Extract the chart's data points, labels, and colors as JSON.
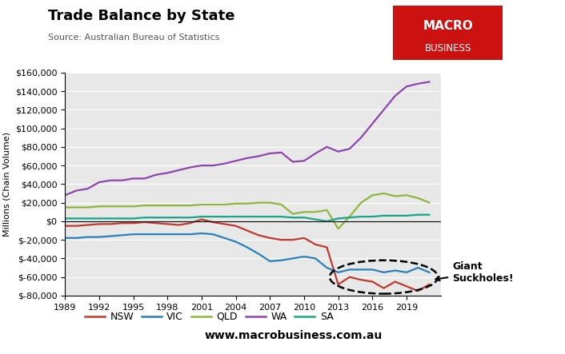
{
  "title": "Trade Balance by State",
  "source": "Source: Australian Bureau of Statistics",
  "ylabel": "Millions (Chain Volume)",
  "website": "www.macrobusiness.com.au",
  "background_color": "#e8e8e8",
  "ylim": [
    -80000,
    160000
  ],
  "yticks": [
    -80000,
    -60000,
    -40000,
    -20000,
    0,
    20000,
    40000,
    60000,
    80000,
    100000,
    120000,
    140000,
    160000
  ],
  "years": [
    1989,
    1990,
    1991,
    1992,
    1993,
    1994,
    1995,
    1996,
    1997,
    1998,
    1999,
    2000,
    2001,
    2002,
    2003,
    2004,
    2005,
    2006,
    2007,
    2008,
    2009,
    2010,
    2011,
    2012,
    2013,
    2014,
    2015,
    2016,
    2017,
    2018,
    2019,
    2020,
    2021
  ],
  "NSW": [
    -5000,
    -5000,
    -4000,
    -3000,
    -3000,
    -2000,
    -2000,
    -1000,
    -2000,
    -3000,
    -4000,
    -2000,
    2000,
    -1000,
    -3000,
    -5000,
    -10000,
    -15000,
    -18000,
    -20000,
    -20000,
    -18000,
    -25000,
    -28000,
    -68000,
    -60000,
    -63000,
    -65000,
    -72000,
    -65000,
    -70000,
    -75000,
    -68000
  ],
  "VIC": [
    -18000,
    -18000,
    -17000,
    -17000,
    -16000,
    -15000,
    -14000,
    -14000,
    -14000,
    -14000,
    -14000,
    -14000,
    -13000,
    -14000,
    -18000,
    -22000,
    -28000,
    -35000,
    -43000,
    -42000,
    -40000,
    -38000,
    -40000,
    -50000,
    -55000,
    -52000,
    -52000,
    -52000,
    -55000,
    -53000,
    -55000,
    -50000,
    -55000
  ],
  "QLD": [
    15000,
    15000,
    15000,
    16000,
    16000,
    16000,
    16000,
    17000,
    17000,
    17000,
    17000,
    17000,
    18000,
    18000,
    18000,
    19000,
    19000,
    20000,
    20000,
    18000,
    8000,
    10000,
    10000,
    12000,
    -8000,
    5000,
    20000,
    28000,
    30000,
    27000,
    28000,
    25000,
    20000
  ],
  "WA": [
    28000,
    33000,
    35000,
    42000,
    44000,
    44000,
    46000,
    46000,
    50000,
    52000,
    55000,
    58000,
    60000,
    60000,
    62000,
    65000,
    68000,
    70000,
    73000,
    74000,
    64000,
    65000,
    73000,
    80000,
    75000,
    78000,
    90000,
    105000,
    120000,
    135000,
    145000,
    148000,
    150000
  ],
  "SA": [
    3000,
    3000,
    3000,
    3000,
    3000,
    3000,
    3000,
    4000,
    4000,
    4000,
    4000,
    4000,
    5000,
    5000,
    5000,
    5000,
    5000,
    5000,
    5000,
    5000,
    4000,
    4000,
    2000,
    0,
    3000,
    4000,
    5000,
    5000,
    6000,
    6000,
    6000,
    7000,
    7000
  ],
  "colors": {
    "NSW": "#c0392b",
    "VIC": "#2980b9",
    "QLD": "#8db63c",
    "WA": "#8e44ad",
    "SA": "#17a589"
  },
  "macro_box_color": "#c0392b",
  "annotation_text": "Giant\nSuckholes!",
  "xlim": [
    1989,
    2022
  ]
}
